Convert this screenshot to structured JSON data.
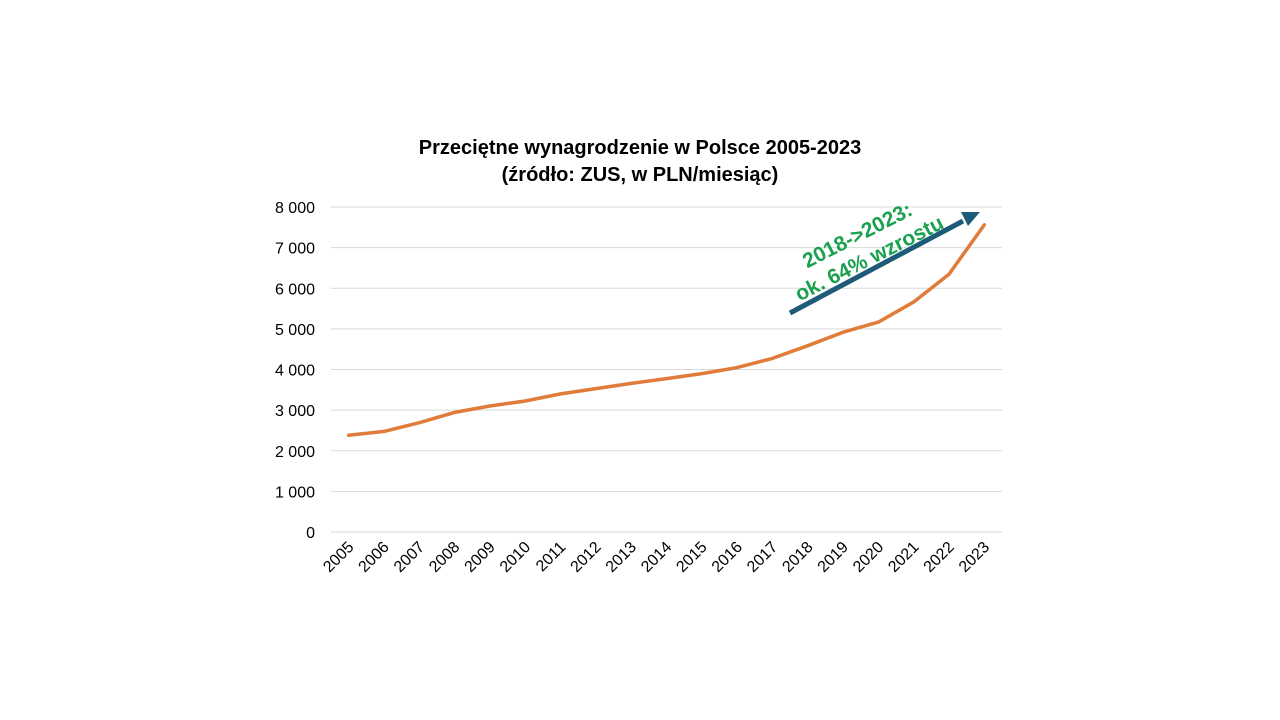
{
  "chart_data": {
    "type": "line",
    "title": "Przeciętne wynagrodzenie w Polsce 2005-2023",
    "subtitle": "(źródło: ZUS, w PLN/miesiąc)",
    "xlabel": "",
    "ylabel": "",
    "x": [
      "2005",
      "2006",
      "2007",
      "2008",
      "2009",
      "2010",
      "2011",
      "2012",
      "2013",
      "2014",
      "2015",
      "2016",
      "2017",
      "2018",
      "2019",
      "2020",
      "2021",
      "2022",
      "2023"
    ],
    "series": [
      {
        "name": "Przeciętne wynagrodzenie",
        "color": "#e07b39",
        "values": [
          2380,
          2477,
          2691,
          2944,
          3102,
          3225,
          3400,
          3530,
          3659,
          3777,
          3900,
          4047,
          4272,
          4585,
          4918,
          5167,
          5662,
          6346,
          7560
        ]
      }
    ],
    "ylim": [
      0,
      8000
    ],
    "yticks": [
      0,
      1000,
      2000,
      3000,
      4000,
      5000,
      6000,
      7000,
      8000
    ],
    "ytick_labels": [
      "0",
      "1 000",
      "2 000",
      "3 000",
      "4 000",
      "5 000",
      "6 000",
      "7 000",
      "8 000"
    ],
    "grid": true,
    "legend": "none",
    "annotation": {
      "line1": "2018->2023:",
      "line2": "ok. 64% wzrostu",
      "text_color": "#1aa14f",
      "arrow_color": "#1d5b78"
    }
  }
}
